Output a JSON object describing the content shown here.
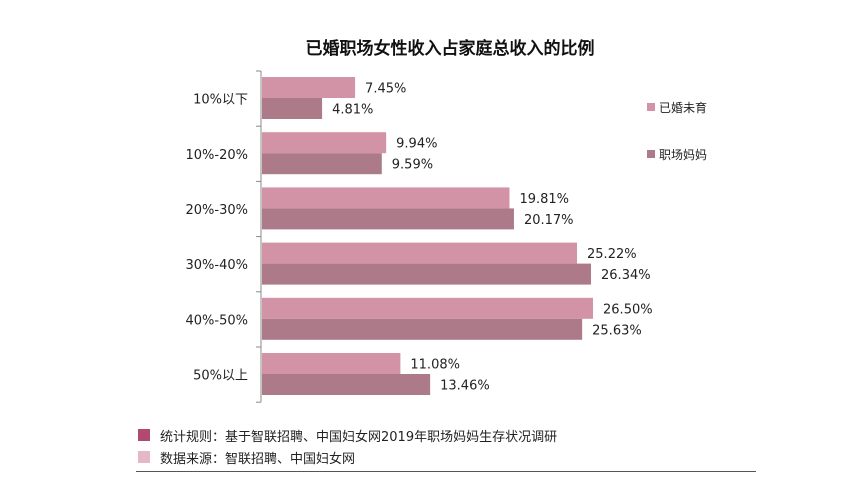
{
  "colors": {
    "series_1": "#d293a7",
    "series_2": "#ad7a8a",
    "note_dark": "#b04a70",
    "note_light": "#e6b7c6",
    "axis": "#888888"
  },
  "chart_data": {
    "type": "bar",
    "orientation": "horizontal",
    "title": "已婚职场女性收入占家庭总收入的比例",
    "categories": [
      "10%以下",
      "10%-20%",
      "20%-30%",
      "30%-40%",
      "40%-50%",
      "50%以上"
    ],
    "series": [
      {
        "name": "已婚未育",
        "values": [
          7.45,
          9.94,
          19.81,
          25.22,
          26.5,
          11.08
        ],
        "labels": [
          "7.45%",
          "9.94%",
          "19.81%",
          "25.22%",
          "26.50%",
          "11.08%"
        ]
      },
      {
        "name": "职场妈妈",
        "values": [
          4.81,
          9.59,
          20.17,
          26.34,
          25.63,
          13.46
        ],
        "labels": [
          "4.81%",
          "9.59%",
          "20.17%",
          "26.34%",
          "25.63%",
          "13.46%"
        ]
      }
    ],
    "value_unit": "%",
    "xlim": [
      0,
      28.5
    ],
    "legend": "right",
    "grid": false
  },
  "notes": [
    {
      "text": "统计规则：基于智联招聘、中国妇女网2019年职场妈妈生存状况调研",
      "swatch": "note_dark"
    },
    {
      "text": "数据来源：智联招聘、中国妇女网",
      "swatch": "note_light"
    }
  ]
}
